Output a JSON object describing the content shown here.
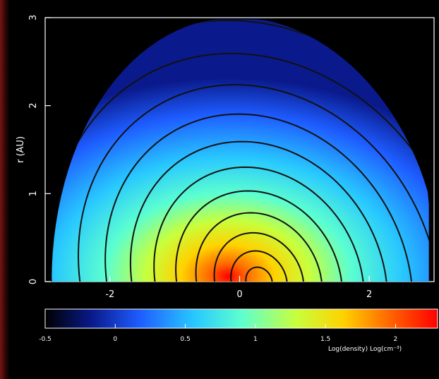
{
  "chart_data": {
    "type": "heatmap",
    "title": "",
    "ylabel": "r (AU)",
    "xlim": [
      -3,
      3
    ],
    "ylim": [
      0,
      3
    ],
    "x_ticks": [
      "-2",
      "0",
      "2"
    ],
    "y_ticks": [
      "0",
      "1",
      "2",
      "3"
    ],
    "colorbar": {
      "label": "Log(density) Log(cm⁻³)",
      "range": [
        -0.5,
        2.3
      ],
      "ticks": [
        "-0.5",
        "0",
        "0.5",
        "1",
        "1.5",
        "2"
      ],
      "colormap": [
        "#000000",
        "#0a1a8c",
        "#1e5cff",
        "#28c8ff",
        "#5cffd0",
        "#c8ff3c",
        "#ffd200",
        "#ff6400",
        "#ff0000"
      ]
    },
    "contour_lines": "magnetic field lines",
    "contour_count": 16,
    "dense_core_position": [
      0.3,
      0.0
    ]
  },
  "colors": {
    "background": "#000000",
    "axis": "#ffffff",
    "contour": "#111111"
  }
}
